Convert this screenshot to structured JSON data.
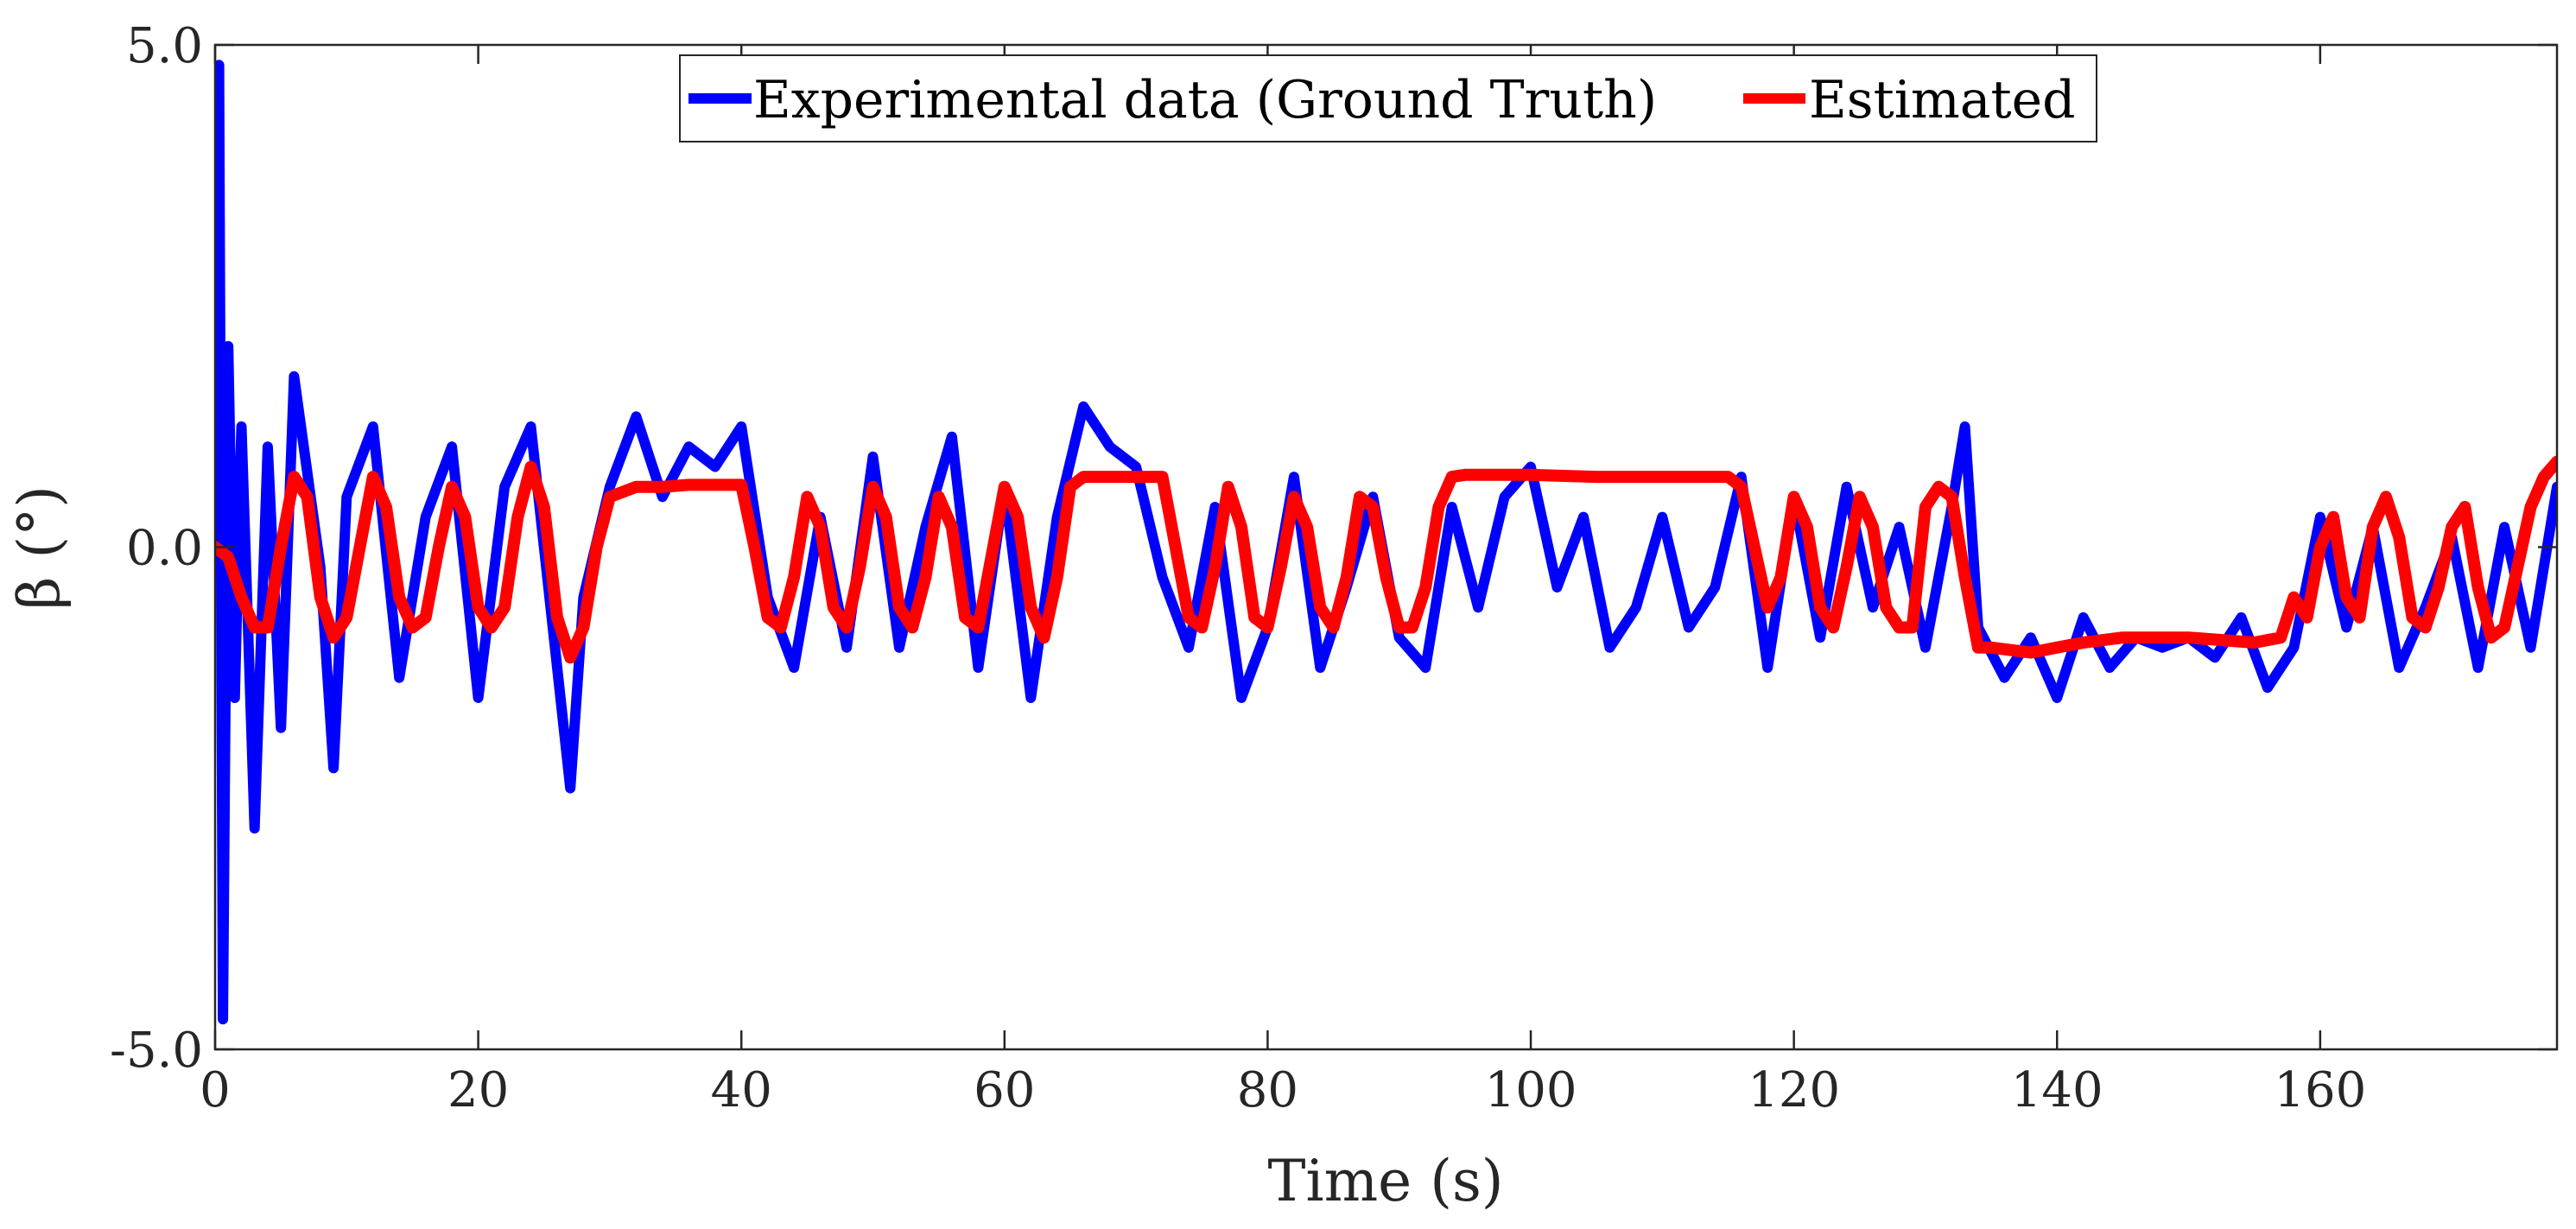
{
  "chart_data": {
    "type": "line",
    "title": "",
    "xlabel": "Time (s)",
    "ylabel": "β (°)",
    "xlim": [
      0,
      178
    ],
    "ylim": [
      -5.0,
      5.0
    ],
    "x_ticks": [
      0,
      20,
      40,
      60,
      80,
      100,
      120,
      140,
      160
    ],
    "x_tick_labels": [
      "0",
      "20",
      "40",
      "60",
      "80",
      "100",
      "120",
      "140",
      "160"
    ],
    "y_ticks": [
      -5.0,
      0.0,
      5.0
    ],
    "y_tick_labels": [
      "-5.0",
      "0.0",
      "5.0"
    ],
    "grid": false,
    "legend_position": "top-center",
    "series": [
      {
        "name": "Experimental data (Ground Truth)",
        "color": "#0000ff",
        "note": "dense noisy measurement; approximate envelope keypoints",
        "x": [
          0,
          0.3,
          0.6,
          1,
          1.5,
          2,
          3,
          4,
          5,
          6,
          8,
          9,
          10,
          12,
          14,
          16,
          18,
          20,
          22,
          24,
          26,
          27,
          28,
          30,
          32,
          34,
          36,
          38,
          40,
          42,
          44,
          46,
          48,
          50,
          52,
          54,
          56,
          58,
          60,
          62,
          64,
          66,
          68,
          70,
          72,
          74,
          76,
          78,
          80,
          82,
          84,
          86,
          88,
          90,
          92,
          94,
          96,
          98,
          100,
          102,
          104,
          106,
          108,
          110,
          112,
          114,
          116,
          118,
          120,
          122,
          124,
          126,
          128,
          130,
          132,
          133,
          134,
          136,
          138,
          140,
          142,
          144,
          146,
          148,
          150,
          152,
          154,
          156,
          158,
          160,
          162,
          164,
          166,
          168,
          170,
          172,
          174,
          176,
          178
        ],
        "values": [
          0.0,
          4.8,
          -4.7,
          2.0,
          -1.5,
          1.2,
          -2.8,
          1.0,
          -1.8,
          1.7,
          -0.2,
          -2.2,
          0.5,
          1.2,
          -1.3,
          0.3,
          1.0,
          -1.5,
          0.6,
          1.2,
          -1.2,
          -2.4,
          -0.5,
          0.6,
          1.3,
          0.5,
          1.0,
          0.8,
          1.2,
          -0.5,
          -1.2,
          0.3,
          -1.0,
          0.9,
          -1.0,
          0.2,
          1.1,
          -1.2,
          0.6,
          -1.5,
          0.3,
          1.4,
          1.0,
          0.8,
          -0.3,
          -1.0,
          0.4,
          -1.5,
          -0.8,
          0.7,
          -1.2,
          -0.4,
          0.5,
          -0.9,
          -1.2,
          0.4,
          -0.6,
          0.5,
          0.8,
          -0.4,
          0.3,
          -1.0,
          -0.6,
          0.3,
          -0.8,
          -0.4,
          0.7,
          -1.2,
          0.5,
          -0.9,
          0.6,
          -0.6,
          0.2,
          -1.0,
          0.4,
          1.2,
          -0.8,
          -1.3,
          -0.9,
          -1.5,
          -0.7,
          -1.2,
          -0.9,
          -1.0,
          -0.9,
          -1.1,
          -0.7,
          -1.4,
          -1.0,
          0.3,
          -0.8,
          0.2,
          -1.2,
          -0.6,
          0.1,
          -1.2,
          0.2,
          -1.0,
          0.6
        ]
      },
      {
        "name": "Estimated",
        "color": "#ff0000",
        "x": [
          0,
          1,
          2,
          3,
          4,
          5,
          6,
          7,
          8,
          9,
          10,
          11,
          12,
          13,
          14,
          15,
          16,
          17,
          18,
          19,
          20,
          21,
          22,
          23,
          24,
          25,
          26,
          27,
          28,
          29,
          30,
          32,
          34,
          36,
          38,
          40,
          41,
          42,
          43,
          44,
          45,
          46,
          47,
          48,
          49,
          50,
          51,
          52,
          53,
          54,
          55,
          56,
          57,
          58,
          59,
          60,
          61,
          62,
          63,
          64,
          65,
          66,
          68,
          70,
          72,
          73,
          74,
          75,
          76,
          77,
          78,
          79,
          80,
          81,
          82,
          83,
          84,
          85,
          86,
          87,
          88,
          89,
          90,
          91,
          92,
          93,
          94,
          95,
          100,
          105,
          110,
          115,
          116,
          117,
          118,
          119,
          120,
          121,
          122,
          123,
          124,
          125,
          126,
          127,
          128,
          129,
          130,
          131,
          132,
          133,
          134,
          135,
          138,
          140,
          142,
          145,
          150,
          155,
          157,
          158,
          159,
          160,
          161,
          162,
          163,
          164,
          165,
          166,
          167,
          168,
          169,
          170,
          171,
          172,
          173,
          174,
          175,
          176,
          177,
          178
        ],
        "values": [
          0.0,
          -0.1,
          -0.5,
          -0.8,
          -0.8,
          0.0,
          0.7,
          0.5,
          -0.5,
          -0.9,
          -0.7,
          0.0,
          0.7,
          0.4,
          -0.5,
          -0.8,
          -0.7,
          0.0,
          0.6,
          0.3,
          -0.6,
          -0.8,
          -0.6,
          0.3,
          0.8,
          0.4,
          -0.7,
          -1.1,
          -0.8,
          0.0,
          0.5,
          0.6,
          0.6,
          0.62,
          0.62,
          0.62,
          0.0,
          -0.7,
          -0.8,
          -0.3,
          0.5,
          0.2,
          -0.6,
          -0.8,
          -0.2,
          0.6,
          0.3,
          -0.6,
          -0.8,
          -0.3,
          0.5,
          0.2,
          -0.7,
          -0.8,
          -0.1,
          0.6,
          0.3,
          -0.6,
          -0.9,
          -0.3,
          0.6,
          0.7,
          0.7,
          0.7,
          0.7,
          0.0,
          -0.7,
          -0.8,
          -0.2,
          0.6,
          0.2,
          -0.7,
          -0.8,
          -0.2,
          0.5,
          0.2,
          -0.6,
          -0.8,
          -0.3,
          0.5,
          0.4,
          -0.3,
          -0.8,
          -0.8,
          -0.4,
          0.4,
          0.7,
          0.72,
          0.72,
          0.7,
          0.7,
          0.7,
          0.6,
          0.0,
          -0.6,
          -0.3,
          0.5,
          0.2,
          -0.6,
          -0.8,
          -0.2,
          0.5,
          0.2,
          -0.6,
          -0.8,
          -0.8,
          0.4,
          0.6,
          0.5,
          -0.3,
          -1.0,
          -1.0,
          -1.05,
          -1.0,
          -0.95,
          -0.9,
          -0.9,
          -0.95,
          -0.9,
          -0.5,
          -0.7,
          0.0,
          0.3,
          -0.5,
          -0.7,
          0.2,
          0.5,
          0.1,
          -0.7,
          -0.8,
          -0.4,
          0.2,
          0.4,
          -0.4,
          -0.9,
          -0.8,
          -0.2,
          0.4,
          0.7,
          0.85
        ]
      }
    ]
  }
}
